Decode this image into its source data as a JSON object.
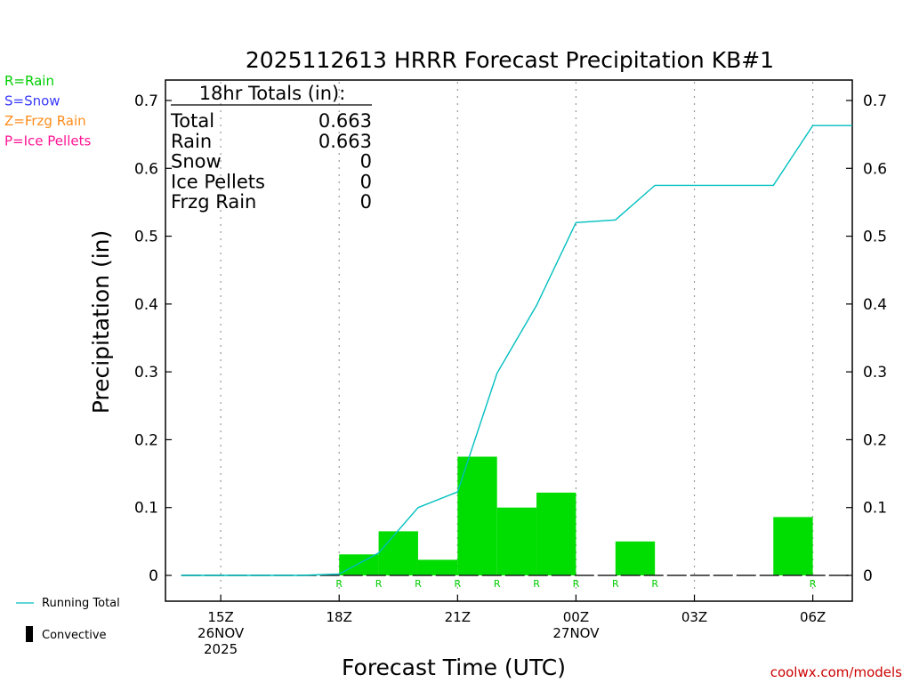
{
  "legend_left": [
    {
      "text": "R=Rain",
      "color": "#00cc00"
    },
    {
      "text": "S=Snow",
      "color": "#3a3aff"
    },
    {
      "text": "Z=Frzg Rain",
      "color": "#ff8c1a"
    },
    {
      "text": "P=Ice Pellets",
      "color": "#ff1493"
    }
  ],
  "legend_bottom": {
    "running_total": "Running Total",
    "convective": "Convective"
  },
  "totals_box": {
    "header": "18hr Totals (in):",
    "rows": [
      {
        "label": "Total",
        "value": "0.663"
      },
      {
        "label": "Rain",
        "value": "0.663"
      },
      {
        "label": "Snow",
        "value": "0"
      },
      {
        "label": "Ice Pellets",
        "value": "0"
      },
      {
        "label": "Frzg Rain",
        "value": "0"
      }
    ]
  },
  "credit": "coolwx.com/models",
  "colors": {
    "rain_bar": "#00dd00",
    "running_total": "#00bfbf",
    "rain_marker": "#00cc00",
    "credit": "#cc0000"
  },
  "chart_data": {
    "type": "bar",
    "title": "2025112613 HRRR Forecast Precipitation KB#1",
    "xlabel": "Forecast Time (UTC)",
    "ylabel": "Precipitation (in)",
    "ylim": [
      0,
      0.7
    ],
    "y_ticks": [
      "0",
      "0.1",
      "0.2",
      "0.3",
      "0.4",
      "0.5",
      "0.6",
      "0.7"
    ],
    "x_tick_labels": [
      {
        "hour": 15,
        "lines": [
          "15Z",
          "26NOV",
          "2025"
        ]
      },
      {
        "hour": 18,
        "lines": [
          "18Z"
        ]
      },
      {
        "hour": 21,
        "lines": [
          "21Z"
        ]
      },
      {
        "hour": 24,
        "lines": [
          "00Z",
          "27NOV"
        ]
      },
      {
        "hour": 27,
        "lines": [
          "03Z"
        ]
      },
      {
        "hour": 30,
        "lines": [
          "06Z"
        ]
      }
    ],
    "hourly_precip": {
      "hour_end": [
        19,
        20,
        21,
        22,
        23,
        24,
        25,
        26,
        27,
        28,
        29,
        30
      ],
      "values": [
        0.031,
        0.065,
        0.023,
        0.175,
        0.1,
        0.122,
        0.0,
        0.05,
        0.0,
        0.0,
        0.0,
        0.086
      ]
    },
    "running_total": {
      "name": "Running Total",
      "x_hour": [
        14,
        15,
        16,
        17,
        18,
        19,
        20,
        21,
        22,
        23,
        24,
        25,
        26,
        27,
        28,
        29,
        30,
        31
      ],
      "values": [
        0,
        0,
        0,
        0,
        0.002,
        0.033,
        0.1,
        0.123,
        0.298,
        0.398,
        0.52,
        0.524,
        0.575,
        0.575,
        0.575,
        0.575,
        0.663,
        0.663
      ]
    },
    "precip_type_markers": {
      "hours": [
        18,
        19,
        20,
        21,
        22,
        23,
        24,
        25,
        26,
        30
      ],
      "label": "R"
    }
  }
}
